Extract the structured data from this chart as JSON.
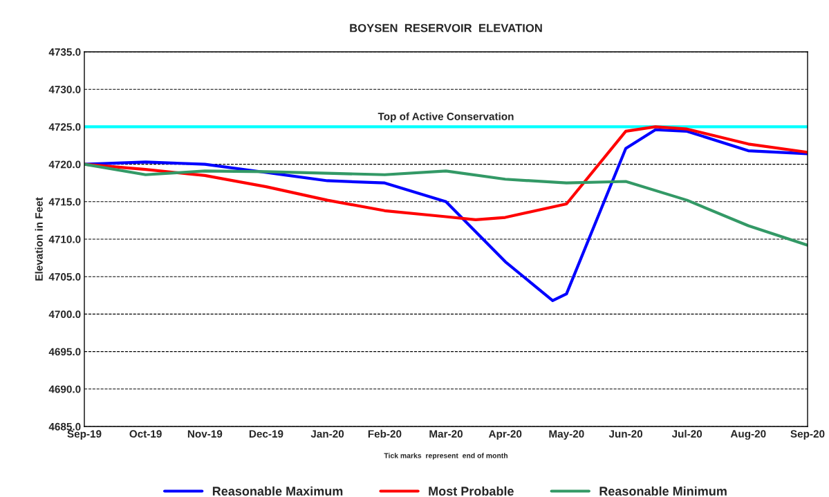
{
  "chart_data": {
    "type": "line",
    "title": "BOYSEN  RESERVOIR  ELEVATION",
    "ylabel": "Elevation in Feet",
    "annotations": [
      "Tick marks  represent  end of month"
    ],
    "xlim": [
      "2019-09-30",
      "2020-09-30"
    ],
    "xticks": [
      {
        "value": "2019-09-30",
        "label": "Sep-19"
      },
      {
        "value": "2019-10-31",
        "label": "Oct-19"
      },
      {
        "value": "2019-11-30",
        "label": "Nov-19"
      },
      {
        "value": "2019-12-31",
        "label": "Dec-19"
      },
      {
        "value": "2020-01-31",
        "label": "Jan-20"
      },
      {
        "value": "2020-02-29",
        "label": "Feb-20"
      },
      {
        "value": "2020-03-31",
        "label": "Mar-20"
      },
      {
        "value": "2020-04-30",
        "label": "Apr-20"
      },
      {
        "value": "2020-05-31",
        "label": "May-20"
      },
      {
        "value": "2020-06-30",
        "label": "Jun-20"
      },
      {
        "value": "2020-07-31",
        "label": "Jul-20"
      },
      {
        "value": "2020-08-31",
        "label": "Aug-20"
      },
      {
        "value": "2020-09-30",
        "label": "Sep-20"
      }
    ],
    "ylim": [
      4685,
      4735
    ],
    "yticks": [
      {
        "value": 4685,
        "label": "4685.0"
      },
      {
        "value": 4690,
        "label": "4690.0"
      },
      {
        "value": 4695,
        "label": "4695.0"
      },
      {
        "value": 4700,
        "label": "4700.0"
      },
      {
        "value": 4705,
        "label": "4705.0"
      },
      {
        "value": 4710,
        "label": "4710.0"
      },
      {
        "value": 4715,
        "label": "4715.0"
      },
      {
        "value": 4720,
        "label": "4720.0"
      },
      {
        "value": 4725,
        "label": "4725.0"
      },
      {
        "value": 4730,
        "label": "4730.0"
      },
      {
        "value": 4735,
        "label": "4735.0"
      }
    ],
    "grid": "y",
    "legend": "bottom",
    "line_style": "solid",
    "ref_lines": [
      {
        "axis": "y",
        "value": 4725,
        "label": "Top of Active Conservation",
        "color": "#00ffff"
      }
    ],
    "series": [
      {
        "name": "Reasonable Maximum",
        "color": "#0000ff",
        "x": [
          "2019-09-30",
          "2019-10-31",
          "2019-11-30",
          "2019-12-31",
          "2020-01-31",
          "2020-02-29",
          "2020-03-31",
          "2020-04-30",
          "2020-05-24",
          "2020-05-31",
          "2020-06-30",
          "2020-07-15",
          "2020-07-31",
          "2020-08-31",
          "2020-09-30"
        ],
        "values": [
          4720.0,
          4720.3,
          4720.0,
          4718.9,
          4717.8,
          4717.5,
          4715.0,
          4707.0,
          4701.8,
          4702.7,
          4722.1,
          4724.6,
          4724.4,
          4721.8,
          4721.4
        ]
      },
      {
        "name": "Most Probable",
        "color": "#ff0000",
        "x": [
          "2019-09-30",
          "2019-10-31",
          "2019-11-30",
          "2019-12-31",
          "2020-01-31",
          "2020-02-29",
          "2020-03-31",
          "2020-04-15",
          "2020-04-30",
          "2020-05-31",
          "2020-06-30",
          "2020-07-15",
          "2020-07-31",
          "2020-08-31",
          "2020-09-30"
        ],
        "values": [
          4720.0,
          4719.3,
          4718.5,
          4717.0,
          4715.2,
          4713.8,
          4713.0,
          4712.6,
          4712.9,
          4714.7,
          4724.4,
          4725.0,
          4724.7,
          4722.7,
          4721.6
        ]
      },
      {
        "name": "Reasonable Minimum",
        "color": "#339966",
        "x": [
          "2019-09-30",
          "2019-10-31",
          "2019-11-30",
          "2019-12-31",
          "2020-01-31",
          "2020-02-29",
          "2020-03-31",
          "2020-04-30",
          "2020-05-31",
          "2020-06-30",
          "2020-07-31",
          "2020-08-31",
          "2020-09-30"
        ],
        "values": [
          4720.0,
          4718.6,
          4719.1,
          4719.0,
          4718.8,
          4718.6,
          4719.1,
          4718.0,
          4717.5,
          4717.7,
          4715.2,
          4711.8,
          4709.2
        ]
      }
    ]
  }
}
